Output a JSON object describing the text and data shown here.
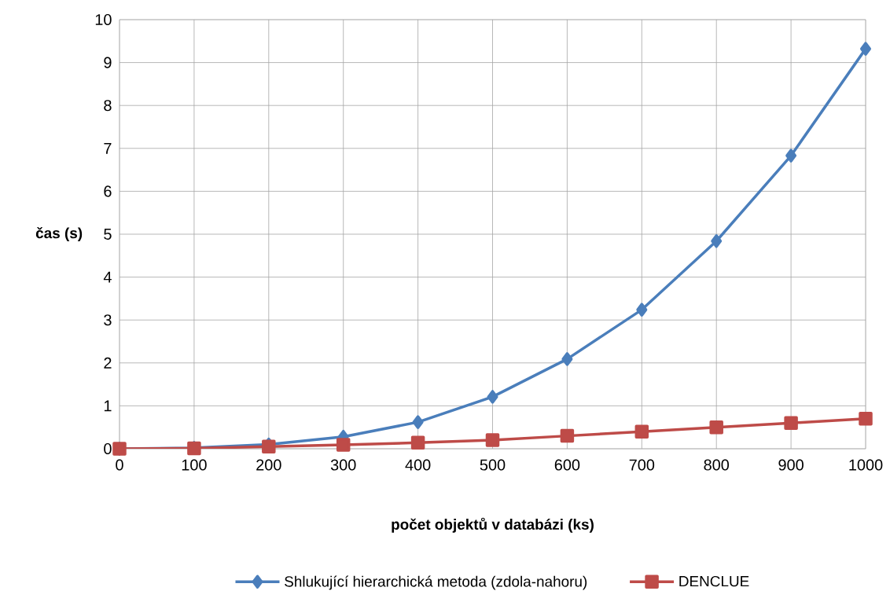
{
  "chart_data": {
    "type": "line",
    "xlabel": "počet objektů v databázi (ks)",
    "ylabel": "čas (s)",
    "x": [
      0,
      100,
      200,
      300,
      400,
      500,
      600,
      700,
      800,
      900,
      1000
    ],
    "series": [
      {
        "name": "Shlukující hierarchická metoda (zdola-nahoru)",
        "color": "#4a7ebb",
        "marker": "diamond",
        "values": [
          0,
          0.02,
          0.1,
          0.28,
          0.62,
          1.21,
          2.09,
          3.24,
          4.84,
          6.83,
          9.32
        ]
      },
      {
        "name": "DENCLUE",
        "color": "#be4b48",
        "marker": "square",
        "values": [
          0,
          0.01,
          0.05,
          0.09,
          0.14,
          0.2,
          0.3,
          0.4,
          0.5,
          0.6,
          0.7
        ]
      }
    ],
    "xlim": [
      0,
      1000
    ],
    "xticks": [
      0,
      100,
      200,
      300,
      400,
      500,
      600,
      700,
      800,
      900,
      1000
    ],
    "ylim": [
      0,
      10
    ],
    "yticks": [
      0,
      1,
      2,
      3,
      4,
      5,
      6,
      7,
      8,
      9,
      10
    ],
    "grid": true,
    "legend": "bottom",
    "line_style": "solid"
  }
}
